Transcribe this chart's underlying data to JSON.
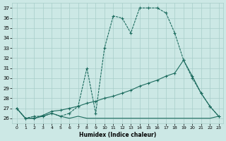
{
  "xlabel": "Humidex (Indice chaleur)",
  "bg_color": "#cce8e5",
  "grid_color": "#a8cec9",
  "line_color": "#1c6b5e",
  "xmin": -0.5,
  "xmax": 23.5,
  "ymin": 25.5,
  "ymax": 37.5,
  "yticks": [
    26,
    27,
    28,
    29,
    30,
    31,
    32,
    33,
    34,
    35,
    36,
    37
  ],
  "xticks": [
    0,
    1,
    2,
    3,
    4,
    5,
    6,
    7,
    8,
    9,
    10,
    11,
    12,
    13,
    14,
    15,
    16,
    17,
    18,
    19,
    20,
    21,
    22,
    23
  ],
  "curve_x": [
    0,
    1,
    2,
    3,
    4,
    5,
    6,
    7,
    8,
    9,
    10,
    11,
    12,
    13,
    14,
    15,
    16,
    17,
    18,
    19,
    20,
    21,
    22,
    23
  ],
  "curve_y": [
    27.0,
    26.0,
    26.2,
    26.2,
    26.5,
    26.2,
    26.5,
    27.2,
    31.0,
    26.5,
    33.0,
    36.2,
    36.0,
    34.5,
    37.0,
    37.0,
    37.0,
    36.5,
    34.5,
    31.8,
    30.0,
    28.5,
    27.2,
    26.2
  ],
  "diag_x": [
    0,
    1,
    2,
    3,
    4,
    5,
    6,
    7,
    8,
    9,
    10,
    11,
    12,
    13,
    14,
    15,
    16,
    17,
    18,
    19,
    20,
    21,
    22,
    23
  ],
  "diag_y": [
    27.0,
    26.0,
    26.0,
    26.3,
    26.7,
    26.8,
    27.0,
    27.2,
    27.5,
    27.7,
    28.0,
    28.2,
    28.5,
    28.8,
    29.2,
    29.5,
    29.8,
    30.2,
    30.5,
    31.8,
    30.2,
    28.5,
    27.2,
    26.2
  ],
  "flat_x": [
    0,
    1,
    2,
    3,
    4,
    5,
    6,
    7,
    8,
    9,
    10,
    11,
    12,
    13,
    14,
    15,
    16,
    17,
    18,
    19,
    20,
    21,
    22,
    23
  ],
  "flat_y": [
    27.0,
    26.0,
    26.0,
    26.2,
    26.5,
    26.2,
    26.0,
    26.2,
    26.0,
    26.0,
    26.0,
    26.0,
    26.0,
    26.0,
    26.0,
    26.0,
    26.0,
    26.0,
    26.0,
    26.0,
    26.0,
    26.0,
    26.0,
    26.2
  ]
}
